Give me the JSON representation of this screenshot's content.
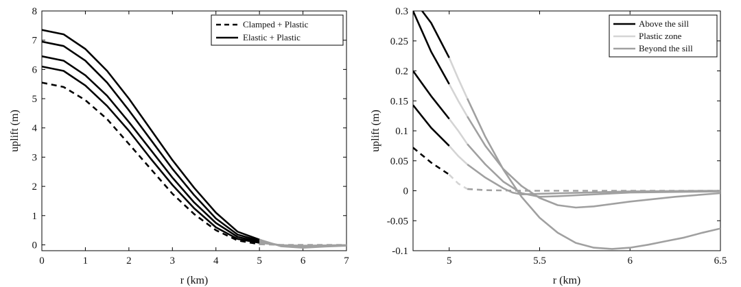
{
  "chart_data": [
    {
      "type": "line",
      "xlabel": "r (km)",
      "ylabel": "uplift (m)",
      "xlim": [
        0,
        7
      ],
      "ylim": [
        -0.2,
        8
      ],
      "xticks": [
        0,
        1,
        2,
        3,
        4,
        5,
        6,
        7
      ],
      "yticks": [
        0,
        1,
        2,
        3,
        4,
        5,
        6,
        7,
        8
      ],
      "legend": {
        "position": "top-right",
        "entries": [
          {
            "label": "Clamped + Plastic",
            "style": "dashed",
            "color": "#000000"
          },
          {
            "label": "Elastic + Plastic",
            "style": "solid",
            "color": "#000000"
          }
        ]
      },
      "series": [
        {
          "style": "dashed",
          "x": [
            0,
            0.5,
            1,
            1.5,
            2,
            2.5,
            3,
            3.5,
            4,
            4.5,
            5,
            5.5,
            6,
            6.5,
            7
          ],
          "y": [
            5.55,
            5.4,
            4.95,
            4.3,
            3.45,
            2.6,
            1.75,
            1.05,
            0.5,
            0.15,
            0.02,
            0,
            0,
            0,
            0
          ]
        },
        {
          "style": "solid",
          "x": [
            0,
            0.5,
            1,
            1.5,
            2,
            2.5,
            3,
            3.5,
            4,
            4.5,
            5,
            5.5,
            6,
            6.5,
            7
          ],
          "y": [
            6.1,
            5.95,
            5.45,
            4.75,
            3.9,
            2.95,
            2.05,
            1.25,
            0.6,
            0.2,
            0.07,
            -0.01,
            -0.03,
            -0.02,
            -0.01
          ]
        },
        {
          "style": "solid",
          "x": [
            0,
            0.5,
            1,
            1.5,
            2,
            2.5,
            3,
            3.5,
            4,
            4.5,
            5,
            5.5,
            6,
            6.5,
            7
          ],
          "y": [
            6.45,
            6.3,
            5.8,
            5.1,
            4.2,
            3.25,
            2.3,
            1.45,
            0.75,
            0.27,
            0.1,
            -0.02,
            -0.04,
            -0.02,
            -0.01
          ]
        },
        {
          "style": "solid",
          "x": [
            0,
            0.5,
            1,
            1.5,
            2,
            2.5,
            3,
            3.5,
            4,
            4.5,
            5,
            5.5,
            6,
            6.5,
            7
          ],
          "y": [
            6.95,
            6.8,
            6.3,
            5.55,
            4.6,
            3.6,
            2.6,
            1.7,
            0.9,
            0.35,
            0.14,
            -0.03,
            -0.06,
            -0.04,
            -0.02
          ]
        },
        {
          "style": "solid",
          "x": [
            0,
            0.5,
            1,
            1.5,
            2,
            2.5,
            3,
            3.5,
            4,
            4.5,
            5,
            5.5,
            6,
            6.5,
            7
          ],
          "y": [
            7.35,
            7.2,
            6.7,
            5.95,
            5.0,
            3.95,
            2.9,
            1.95,
            1.1,
            0.45,
            0.18,
            -0.05,
            -0.1,
            -0.06,
            -0.03
          ]
        }
      ]
    },
    {
      "type": "line",
      "xlabel": "r (km)",
      "ylabel": "uplift (m)",
      "xlim": [
        4.8,
        6.5
      ],
      "ylim": [
        -0.1,
        0.3
      ],
      "xticks": [
        5,
        5.5,
        6,
        6.5
      ],
      "yticks": [
        -0.1,
        -0.05,
        0,
        0.05,
        0.1,
        0.15,
        0.2,
        0.25,
        0.3
      ],
      "legend": {
        "position": "top-right",
        "entries": [
          {
            "label": "Above the sill",
            "color": "#000000"
          },
          {
            "label": "Plastic zone",
            "color": "#d4d4d4"
          },
          {
            "label": "Beyond the sill",
            "color": "#a0a0a0"
          }
        ]
      },
      "series": [
        {
          "style": "dashed",
          "above": {
            "x": [
              4.8,
              4.9,
              5.0
            ],
            "y": [
              0.072,
              0.047,
              0.027
            ]
          },
          "plastic": {
            "x": [
              5.0,
              5.05,
              5.1
            ],
            "y": [
              0.027,
              0.012,
              0.003
            ]
          },
          "beyond": {
            "x": [
              5.1,
              5.2,
              5.4,
              5.6,
              6.0,
              6.5
            ],
            "y": [
              0.003,
              0.001,
              0,
              0,
              0,
              0
            ]
          }
        },
        {
          "style": "solid",
          "above": {
            "x": [
              4.8,
              4.9,
              5.0
            ],
            "y": [
              0.143,
              0.105,
              0.075
            ]
          },
          "plastic": {
            "x": [
              5.0,
              5.05,
              5.1
            ],
            "y": [
              0.075,
              0.058,
              0.044
            ]
          },
          "beyond": {
            "x": [
              5.1,
              5.2,
              5.3,
              5.35,
              5.4,
              5.5,
              6.0,
              6.5
            ],
            "y": [
              0.044,
              0.022,
              0.004,
              -0.003,
              -0.006,
              -0.005,
              -0.001,
              0
            ]
          }
        },
        {
          "style": "solid",
          "above": {
            "x": [
              4.8,
              4.9,
              5.0
            ],
            "y": [
              0.2,
              0.158,
              0.12
            ]
          },
          "plastic": {
            "x": [
              5.0,
              5.05,
              5.1
            ],
            "y": [
              0.12,
              0.1,
              0.078
            ]
          },
          "beyond": {
            "x": [
              5.1,
              5.2,
              5.3,
              5.4,
              5.5,
              5.6,
              6.0,
              6.5
            ],
            "y": [
              0.078,
              0.044,
              0.015,
              -0.004,
              -0.01,
              -0.009,
              -0.003,
              -0.001
            ]
          }
        },
        {
          "style": "solid",
          "above": {
            "x": [
              4.8,
              4.9,
              5.0
            ],
            "y": [
              0.3,
              0.232,
              0.178
            ]
          },
          "plastic": {
            "x": [
              5.0,
              5.05,
              5.1
            ],
            "y": [
              0.178,
              0.15,
              0.124
            ]
          },
          "beyond": {
            "x": [
              5.1,
              5.2,
              5.3,
              5.4,
              5.5,
              5.6,
              5.7,
              5.8,
              6.0,
              6.25,
              6.5
            ],
            "y": [
              0.124,
              0.075,
              0.036,
              0.008,
              -0.012,
              -0.024,
              -0.028,
              -0.026,
              -0.018,
              -0.01,
              -0.004
            ]
          }
        },
        {
          "style": "solid",
          "above": {
            "x": [
              4.85,
              4.9,
              5.0
            ],
            "y": [
              0.3,
              0.28,
              0.222
            ]
          },
          "plastic": {
            "x": [
              5.0,
              5.05,
              5.1
            ],
            "y": [
              0.222,
              0.187,
              0.154
            ]
          },
          "beyond": {
            "x": [
              5.1,
              5.2,
              5.3,
              5.4,
              5.5,
              5.6,
              5.7,
              5.8,
              5.9,
              6.0,
              6.1,
              6.2,
              6.3,
              6.4,
              6.5
            ],
            "y": [
              0.154,
              0.09,
              0.035,
              -0.01,
              -0.045,
              -0.07,
              -0.087,
              -0.095,
              -0.097,
              -0.095,
              -0.09,
              -0.084,
              -0.078,
              -0.07,
              -0.063
            ]
          }
        }
      ]
    }
  ]
}
